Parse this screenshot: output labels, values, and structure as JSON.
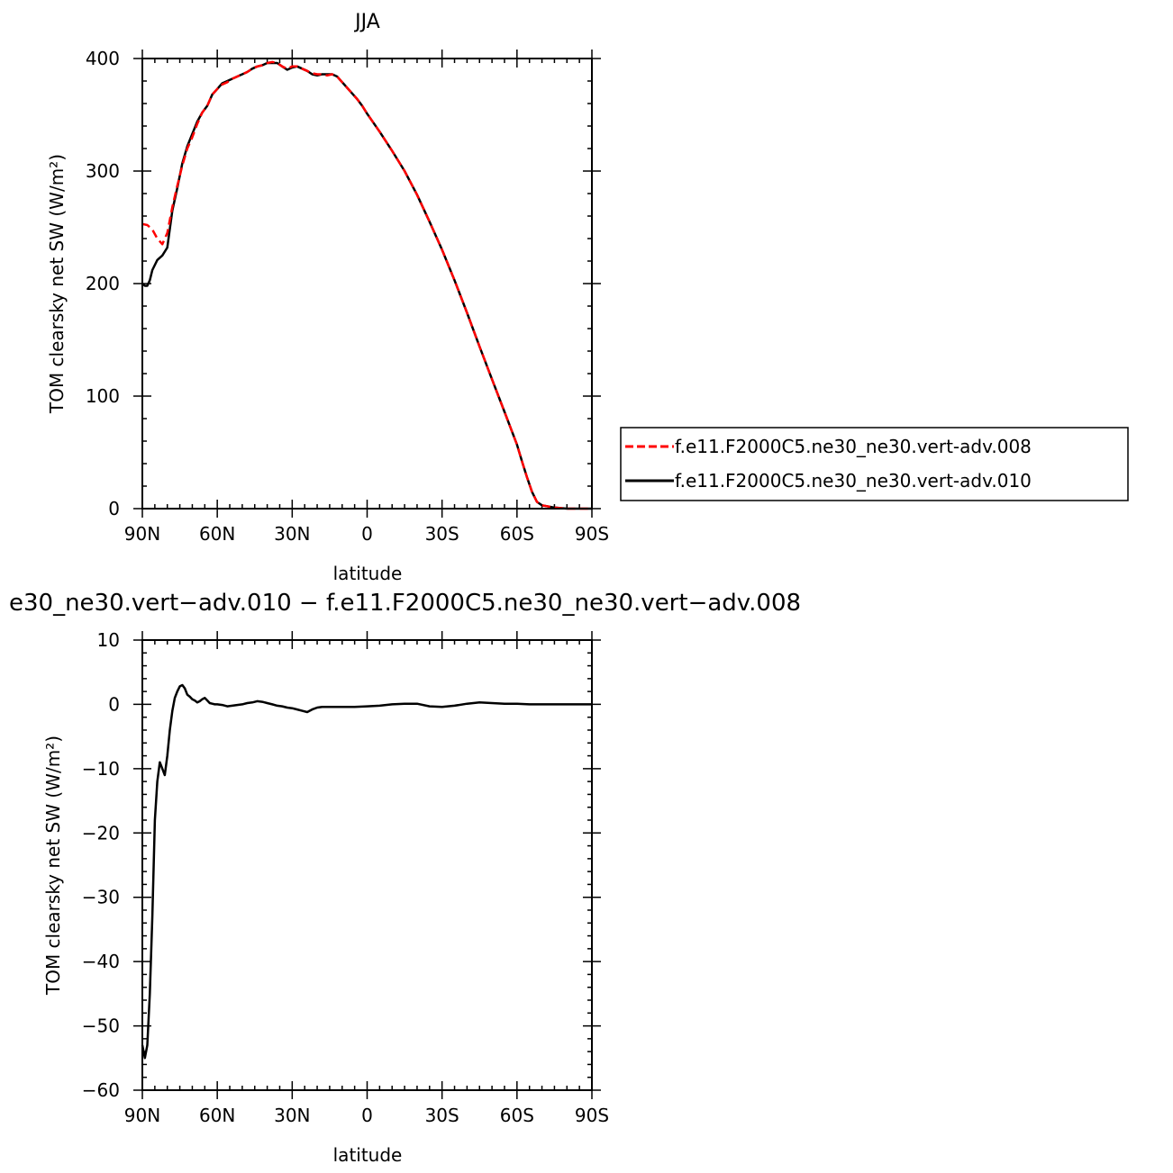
{
  "chart_data": [
    {
      "type": "line",
      "title": "JJA",
      "xlabel": "latitude",
      "ylabel": "TOM clearsky net SW (W/m²)",
      "xlim": [
        90,
        -90
      ],
      "ylim": [
        0,
        400
      ],
      "x_ticks": [
        {
          "value": 90,
          "label": "90N"
        },
        {
          "value": 60,
          "label": "60N"
        },
        {
          "value": 30,
          "label": "30N"
        },
        {
          "value": 0,
          "label": "0"
        },
        {
          "value": -30,
          "label": "30S"
        },
        {
          "value": -60,
          "label": "60S"
        },
        {
          "value": -90,
          "label": "90S"
        }
      ],
      "y_ticks": [
        {
          "value": 0,
          "label": "0"
        },
        {
          "value": 100,
          "label": "100"
        },
        {
          "value": 200,
          "label": "200"
        },
        {
          "value": 300,
          "label": "300"
        },
        {
          "value": 400,
          "label": "400"
        }
      ],
      "legend_position": "right",
      "series": [
        {
          "name": "f.e11.F2000C5.ne30_ne30.vert-adv.008",
          "color": "#ff0000",
          "dash": "dashed",
          "x": [
            90,
            88,
            86,
            84,
            82,
            80,
            78,
            76,
            74,
            72,
            70,
            68,
            66,
            64,
            62,
            60,
            58,
            56,
            54,
            52,
            50,
            48,
            46,
            44,
            42,
            40,
            38,
            36,
            34,
            32,
            30,
            28,
            26,
            24,
            22,
            20,
            18,
            16,
            14,
            12,
            10,
            8,
            6,
            4,
            2,
            0,
            -5,
            -10,
            -15,
            -20,
            -25,
            -30,
            -35,
            -40,
            -45,
            -50,
            -55,
            -60,
            -62,
            -64,
            -66,
            -68,
            -70,
            -75,
            -80,
            -85,
            -90
          ],
          "y": [
            253,
            252,
            248,
            240,
            235,
            245,
            268,
            287,
            305,
            320,
            330,
            342,
            352,
            358,
            368,
            373,
            377,
            379,
            382,
            384,
            386,
            388,
            391,
            393,
            394,
            396,
            397,
            396,
            393,
            391,
            393,
            393,
            391,
            389,
            387,
            386,
            386,
            385,
            386,
            384,
            379,
            374,
            369,
            364,
            358,
            351,
            335,
            318,
            300,
            279,
            255,
            230,
            203,
            174,
            144,
            115,
            86,
            57,
            42,
            28,
            15,
            6,
            3,
            1,
            0,
            0,
            0
          ]
        },
        {
          "name": "f.e11.F2000C5.ne30_ne30.vert-adv.010",
          "color": "#000000",
          "dash": "solid",
          "x": [
            90,
            89,
            88,
            87,
            86,
            84,
            82,
            80,
            78,
            76,
            74,
            72,
            70,
            68,
            66,
            64,
            62,
            60,
            58,
            56,
            54,
            52,
            50,
            48,
            46,
            44,
            42,
            40,
            38,
            36,
            34,
            32,
            30,
            28,
            26,
            24,
            22,
            20,
            18,
            16,
            14,
            12,
            10,
            8,
            6,
            4,
            2,
            0,
            -5,
            -10,
            -15,
            -20,
            -25,
            -30,
            -35,
            -40,
            -45,
            -50,
            -55,
            -60,
            -62,
            -64,
            -66,
            -68,
            -70,
            -75,
            -80,
            -85,
            -90
          ],
          "y": [
            200,
            198,
            198,
            203,
            212,
            221,
            225,
            232,
            265,
            285,
            307,
            322,
            333,
            344,
            352,
            358,
            368,
            373,
            378,
            380,
            382,
            384,
            386,
            388,
            391,
            393,
            394,
            396,
            396,
            396,
            393,
            390,
            392,
            393,
            391,
            389,
            386,
            385,
            386,
            386,
            386,
            384,
            379,
            374,
            369,
            364,
            358,
            351,
            335,
            318,
            300,
            279,
            255,
            230,
            203,
            174,
            144,
            115,
            86,
            57,
            42,
            28,
            15,
            6,
            3,
            1,
            0,
            0,
            0
          ]
        }
      ]
    },
    {
      "type": "line",
      "title": "e30_ne30.vert−adv.010 − f.e11.F2000C5.ne30_ne30.vert−adv.008",
      "xlabel": "latitude",
      "ylabel": "TOM clearsky net SW (W/m²)",
      "xlim": [
        90,
        -90
      ],
      "ylim": [
        -60,
        10
      ],
      "x_ticks": [
        {
          "value": 90,
          "label": "90N"
        },
        {
          "value": 60,
          "label": "60N"
        },
        {
          "value": 30,
          "label": "30N"
        },
        {
          "value": 0,
          "label": "0"
        },
        {
          "value": -30,
          "label": "30S"
        },
        {
          "value": -60,
          "label": "60S"
        },
        {
          "value": -90,
          "label": "90S"
        }
      ],
      "y_ticks": [
        {
          "value": -60,
          "label": "−60"
        },
        {
          "value": -50,
          "label": "−50"
        },
        {
          "value": -40,
          "label": "−40"
        },
        {
          "value": -30,
          "label": "−30"
        },
        {
          "value": -20,
          "label": "−20"
        },
        {
          "value": -10,
          "label": "−10"
        },
        {
          "value": 0,
          "label": "0"
        },
        {
          "value": 10,
          "label": "10"
        }
      ],
      "series": [
        {
          "color": "#000000",
          "dash": "solid",
          "x": [
            90,
            89,
            88,
            87,
            86,
            85,
            84,
            83,
            82,
            81,
            80,
            79,
            78,
            77,
            76,
            75,
            74,
            73,
            72,
            71,
            70,
            69,
            68,
            67,
            66,
            65,
            64,
            63,
            62,
            61,
            60,
            58,
            56,
            54,
            52,
            50,
            48,
            46,
            44,
            42,
            40,
            38,
            36,
            34,
            32,
            30,
            28,
            26,
            24,
            22,
            20,
            18,
            16,
            14,
            12,
            10,
            5,
            0,
            -5,
            -10,
            -15,
            -20,
            -25,
            -30,
            -35,
            -40,
            -45,
            -50,
            -55,
            -60,
            -65,
            -70,
            -75,
            -80,
            -85,
            -90
          ],
          "y": [
            -53,
            -55,
            -53,
            -45,
            -33,
            -18,
            -12,
            -9,
            -10,
            -11,
            -8,
            -4,
            -1,
            1,
            2,
            2.8,
            3,
            2.5,
            1.5,
            1.2,
            0.8,
            0.6,
            0.3,
            0.5,
            0.8,
            1,
            0.6,
            0.2,
            0.1,
            0,
            0,
            -0.1,
            -0.3,
            -0.2,
            -0.1,
            0,
            0.2,
            0.3,
            0.5,
            0.4,
            0.2,
            0,
            -0.2,
            -0.3,
            -0.5,
            -0.6,
            -0.8,
            -1,
            -1.2,
            -0.8,
            -0.5,
            -0.4,
            -0.4,
            -0.4,
            -0.4,
            -0.4,
            -0.4,
            -0.3,
            -0.2,
            0,
            0.1,
            0.1,
            -0.3,
            -0.4,
            -0.2,
            0.1,
            0.3,
            0.2,
            0.1,
            0.1,
            0,
            0,
            0,
            0,
            0,
            0
          ]
        }
      ]
    }
  ]
}
